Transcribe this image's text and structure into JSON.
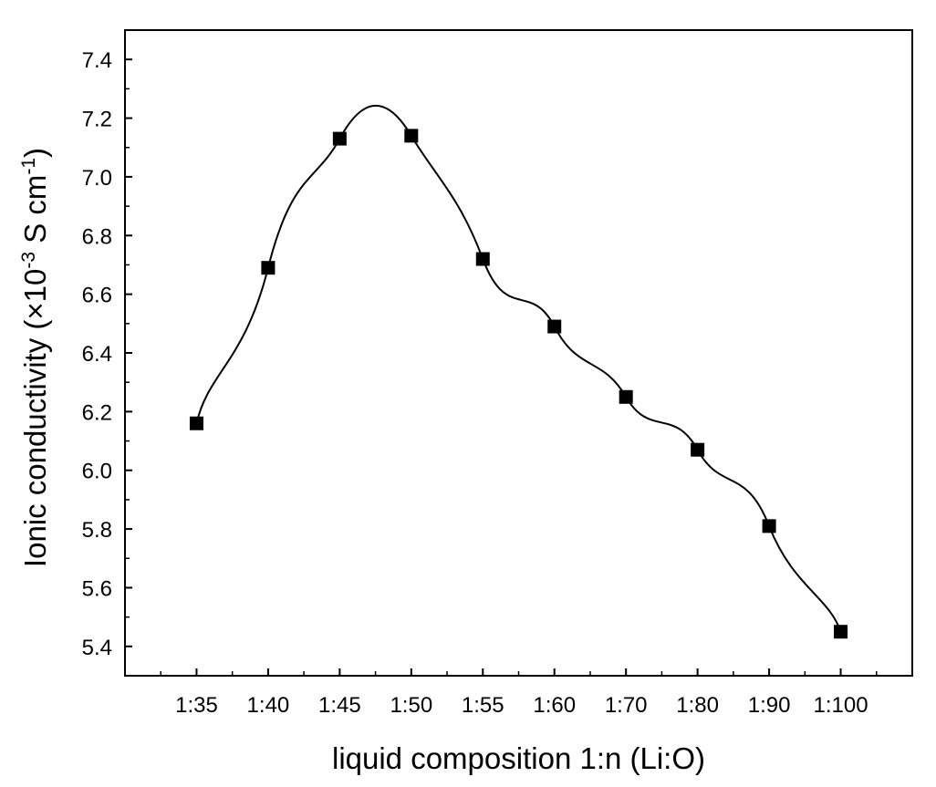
{
  "chart_data": {
    "type": "line",
    "title": "",
    "xlabel": "liquid composition 1:n (Li:O)",
    "ylabel": {
      "main": "Ionic conductivity (×10",
      "exp1": "-3",
      "mid": " S cm",
      "exp2": "-1",
      "end": ")"
    },
    "categories": [
      "1:35",
      "1:40",
      "1:45",
      "1:50",
      "1:55",
      "1:60",
      "1:70",
      "1:80",
      "1:90",
      "1:100"
    ],
    "series": [
      {
        "values": [
          6.16,
          6.69,
          7.13,
          7.14,
          6.72,
          6.49,
          6.25,
          6.07,
          5.81,
          5.45
        ],
        "marker": "square",
        "line": "smooth",
        "color": "#000000"
      }
    ],
    "ylim": [
      5.3,
      7.5
    ],
    "yticks": [
      5.4,
      5.6,
      5.8,
      6.0,
      6.2,
      6.4,
      6.6,
      6.8,
      7.0,
      7.2,
      7.4
    ],
    "ytick_labels": [
      "5.4",
      "5.6",
      "5.8",
      "6.0",
      "6.2",
      "6.4",
      "6.6",
      "6.8",
      "7.0",
      "7.2",
      "7.4"
    ],
    "grid": false,
    "legend": "none"
  }
}
